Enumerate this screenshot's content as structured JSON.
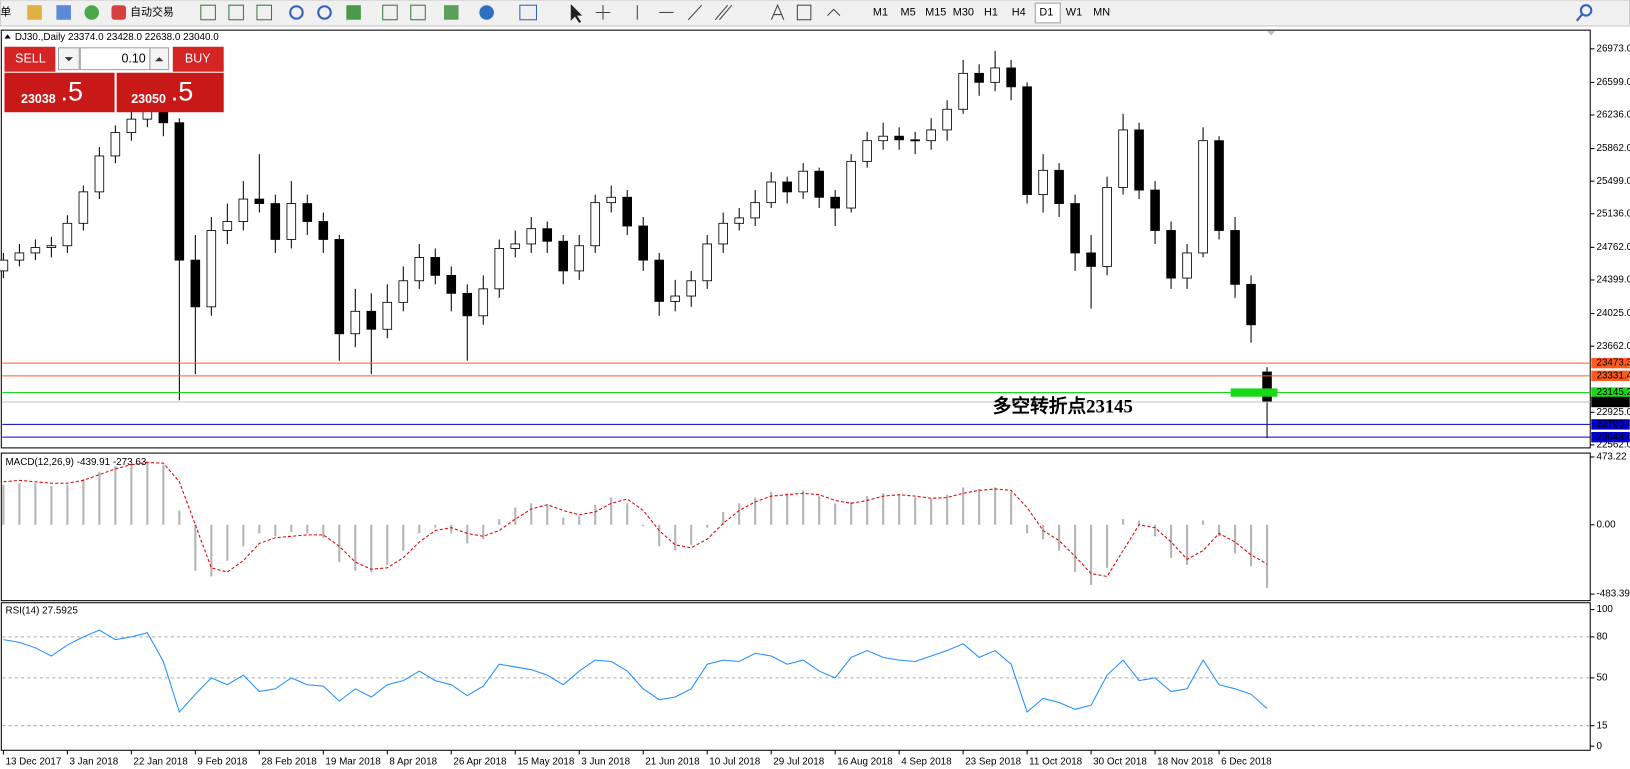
{
  "toolbar": {
    "menu_fragment": "单",
    "auto_trade": "自动交易",
    "timeframes": [
      "M1",
      "M5",
      "M15",
      "M30",
      "H1",
      "H4",
      "D1",
      "W1",
      "MN"
    ],
    "selected_timeframe": "D1"
  },
  "trade_panel": {
    "sell": "SELL",
    "buy": "BUY",
    "lot": "0.10",
    "sell_price": "23038",
    "sell_pip": ".5",
    "buy_price": "23050",
    "buy_pip": ".5"
  },
  "chart_data": [
    {
      "type": "candlestick",
      "title": "DJ30.,Daily  23374.0 23428.0 22638.0 23040.0",
      "x": [
        "13 Dec 2017",
        null,
        null,
        null,
        "3 Jan 2018",
        null,
        null,
        null,
        "22 Jan 2018",
        null,
        null,
        null,
        "9 Feb 2018",
        null,
        null,
        null,
        "28 Feb 2018",
        null,
        null,
        null,
        "19 Mar 2018",
        null,
        null,
        null,
        "8 Apr 2018",
        null,
        null,
        null,
        "26 Apr 2018",
        null,
        null,
        null,
        "15 May 2018",
        null,
        null,
        null,
        "3 Jun 2018",
        null,
        null,
        null,
        "21 Jun 2018",
        null,
        null,
        null,
        "10 Jul 2018",
        null,
        null,
        null,
        "29 Jul 2018",
        null,
        null,
        null,
        "16 Aug 2018",
        null,
        null,
        null,
        "4 Sep 2018",
        null,
        null,
        null,
        "23 Sep 2018",
        null,
        null,
        null,
        "11 Oct 2018",
        null,
        null,
        null,
        "30 Oct 2018",
        null,
        null,
        null,
        "18 Nov 2018",
        null,
        null,
        null,
        "6 Dec 2018",
        null,
        null,
        null
      ],
      "open": [
        24500,
        24620,
        24700,
        24760,
        24780,
        25030,
        25380,
        25780,
        26040,
        26190,
        26400,
        26150,
        24620,
        24100,
        24950,
        25050,
        25300,
        25250,
        24850,
        25250,
        25050,
        24850,
        23800,
        24050,
        23850,
        24150,
        24390,
        24650,
        24450,
        24250,
        24000,
        24300,
        24750,
        24800,
        24970,
        24830,
        24500,
        24780,
        25260,
        25320,
        25000,
        24620,
        24160,
        24220,
        24390,
        24800,
        25030,
        25090,
        25260,
        25490,
        25380,
        25610,
        25320,
        25200,
        25720,
        25950,
        26000,
        25960,
        25950,
        26070,
        26300,
        26700,
        26600,
        26760,
        26550,
        25350,
        25620,
        25250,
        24700,
        24550,
        25430,
        26070,
        25400,
        24950,
        24420,
        24700,
        25950,
        24950,
        24350,
        23374
      ],
      "high": [
        24700,
        24800,
        24850,
        24880,
        25120,
        25450,
        25880,
        26120,
        26300,
        26620,
        26500,
        26200,
        24900,
        25100,
        25250,
        25500,
        25800,
        25350,
        25500,
        25350,
        25150,
        24900,
        24300,
        24250,
        24350,
        24550,
        24800,
        24750,
        24550,
        24350,
        24450,
        24850,
        24950,
        25100,
        25050,
        24900,
        24900,
        25350,
        25450,
        25400,
        25100,
        24700,
        24400,
        24500,
        24900,
        25150,
        25200,
        25400,
        25600,
        25550,
        25700,
        25650,
        25400,
        25800,
        26050,
        26150,
        26100,
        26050,
        26200,
        26400,
        26850,
        26800,
        26950,
        26850,
        26600,
        25800,
        25700,
        25350,
        24900,
        25550,
        26250,
        26150,
        25500,
        25050,
        24800,
        26100,
        26000,
        25100,
        24450,
        23428
      ],
      "low": [
        24420,
        24550,
        24620,
        24650,
        24700,
        24950,
        25300,
        25700,
        25950,
        26100,
        26000,
        23060,
        23350,
        24000,
        24800,
        24950,
        25150,
        24700,
        24750,
        24900,
        24700,
        23500,
        23650,
        23350,
        23750,
        24050,
        24300,
        24350,
        24050,
        23500,
        23900,
        24200,
        24650,
        24700,
        24700,
        24350,
        24400,
        24700,
        25150,
        24900,
        24500,
        24000,
        24050,
        24100,
        24300,
        24700,
        24950,
        25000,
        25200,
        25250,
        25300,
        25200,
        25000,
        25150,
        25650,
        25850,
        25850,
        25800,
        25850,
        25950,
        26250,
        26450,
        26500,
        26400,
        25250,
        25150,
        25100,
        24500,
        24080,
        24450,
        25350,
        25300,
        24800,
        24300,
        24300,
        24650,
        24850,
        24200,
        23700,
        22638
      ],
      "close": [
        24620,
        24700,
        24760,
        24780,
        25030,
        25380,
        25780,
        26040,
        26190,
        26400,
        26150,
        24620,
        24100,
        24950,
        25050,
        25300,
        25250,
        24850,
        25250,
        25050,
        24850,
        23800,
        24050,
        23850,
        24150,
        24390,
        24650,
        24450,
        24250,
        24000,
        24300,
        24750,
        24800,
        24970,
        24830,
        24500,
        24780,
        25260,
        25320,
        25000,
        24620,
        24160,
        24220,
        24390,
        24800,
        25030,
        25090,
        25260,
        25490,
        25380,
        25610,
        25320,
        25200,
        25720,
        25950,
        26000,
        25960,
        25950,
        26070,
        26300,
        26700,
        26600,
        26760,
        26550,
        25350,
        25620,
        25250,
        24700,
        24550,
        25430,
        26070,
        25400,
        24950,
        24420,
        24700,
        25950,
        24950,
        24350,
        23900,
        23040
      ],
      "ylim": [
        22529,
        27158
      ],
      "yticks": [
        {
          "value": 26973,
          "label": "26973.0"
        },
        {
          "value": 26599,
          "label": "26599.0"
        },
        {
          "value": 26236,
          "label": "26236.0"
        },
        {
          "value": 25862,
          "label": "25862.0"
        },
        {
          "value": 25499,
          "label": "25499.0"
        },
        {
          "value": 25136,
          "label": "25136.0"
        },
        {
          "value": 24762,
          "label": "24762.0"
        },
        {
          "value": 24399,
          "label": "24399.0"
        },
        {
          "value": 24025,
          "label": "24025.0"
        },
        {
          "value": 23662,
          "label": "23662.0"
        },
        {
          "value": 22925,
          "label": "22925.0"
        },
        {
          "value": 22562,
          "label": "22562.0"
        }
      ],
      "levels": [
        {
          "value": 23473.3,
          "label": "23473.3",
          "color": "#ff5a1e"
        },
        {
          "value": 23331.4,
          "label": "23331.4",
          "color": "#ff5a1e"
        },
        {
          "value": 23145.2,
          "label": "23145.2",
          "color": "#18d818"
        },
        {
          "value": 22790.4,
          "label": "22790.4",
          "color": "#0000c8"
        },
        {
          "value": 22648.6,
          "label": "22648.6",
          "color": "#0000c8"
        }
      ],
      "current_price": {
        "value": 23040,
        "label": "23040.0"
      },
      "annotation": "多空转折点23145",
      "annotation_color": "#22e022"
    },
    {
      "type": "macd",
      "title": "MACD(12,26,9) -439.91 -273.63",
      "values": [
        280,
        290,
        290,
        270,
        280,
        320,
        370,
        410,
        430,
        440,
        420,
        100,
        -320,
        -360,
        -250,
        -150,
        -60,
        -80,
        -50,
        -60,
        -90,
        -260,
        -320,
        -330,
        -280,
        -180,
        -60,
        -20,
        -60,
        -130,
        -100,
        40,
        120,
        150,
        140,
        50,
        60,
        140,
        190,
        150,
        -10,
        -150,
        -180,
        -140,
        -20,
        90,
        150,
        190,
        230,
        220,
        240,
        200,
        150,
        160,
        200,
        220,
        210,
        190,
        180,
        210,
        260,
        250,
        260,
        230,
        -60,
        -100,
        -180,
        -330,
        -420,
        -300,
        40,
        30,
        -80,
        -230,
        -280,
        30,
        -80,
        -200,
        -290,
        -439.91
      ],
      "signal": [
        300,
        310,
        300,
        290,
        290,
        310,
        350,
        390,
        420,
        435,
        430,
        300,
        0,
        -300,
        -330,
        -250,
        -130,
        -90,
        -80,
        -70,
        -70,
        -150,
        -260,
        -310,
        -300,
        -230,
        -120,
        -40,
        -20,
        -60,
        -80,
        -40,
        40,
        110,
        140,
        100,
        70,
        90,
        150,
        180,
        100,
        -40,
        -140,
        -160,
        -100,
        10,
        100,
        160,
        200,
        210,
        220,
        210,
        170,
        150,
        170,
        200,
        210,
        200,
        185,
        190,
        220,
        240,
        250,
        240,
        120,
        -40,
        -110,
        -220,
        -340,
        -360,
        -180,
        0,
        -20,
        -120,
        -240,
        -180,
        -60,
        -120,
        -210,
        -273.63
      ],
      "color": "#b4b4b4",
      "signal_color": "#e00000",
      "ylim": [
        -529,
        493
      ],
      "yticks": [
        473.22,
        {
          "value": 0,
          "label": "0.00"
        },
        -483.39
      ]
    },
    {
      "type": "line",
      "title": "RSI(14) 27.5925",
      "values": [
        78,
        76,
        72,
        66,
        74,
        80,
        85,
        78,
        80,
        83,
        62,
        25,
        38,
        50,
        45,
        52,
        40,
        42,
        50,
        45,
        44,
        33,
        42,
        36,
        45,
        48,
        55,
        48,
        45,
        37,
        44,
        60,
        58,
        56,
        52,
        45,
        55,
        63,
        62,
        55,
        42,
        34,
        36,
        42,
        60,
        63,
        62,
        68,
        66,
        60,
        63,
        55,
        50,
        65,
        70,
        65,
        63,
        62,
        66,
        70,
        75,
        65,
        70,
        60,
        25,
        35,
        32,
        27,
        30,
        52,
        63,
        48,
        50,
        40,
        42,
        63,
        45,
        42,
        38,
        27.5925
      ],
      "color": "#1e8fff",
      "ylim": [
        -3,
        105
      ],
      "yticks": [
        100,
        80,
        50,
        15,
        0
      ],
      "levels": [
        80,
        50,
        15
      ]
    }
  ]
}
